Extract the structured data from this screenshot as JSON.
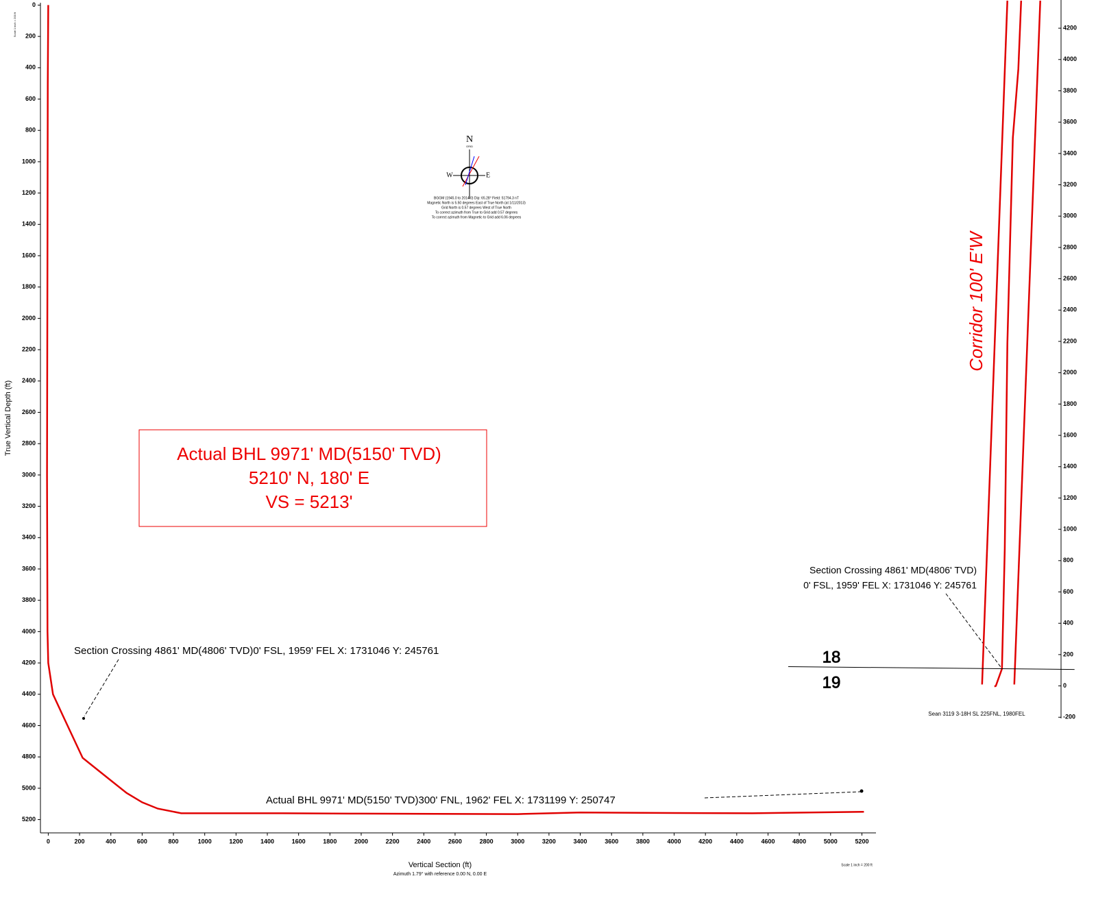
{
  "chart_data": [
    {
      "type": "line",
      "y_label": "True Vertical Depth (ft)",
      "x_label": "Vertical Section (ft)",
      "x_sublabel": "Azimuth 1.79° with reference 0.00 N, 0.00 E",
      "scale_note": "Scale 1 inch = 200 ft",
      "y_inverted": true,
      "color": "#e00000",
      "x": [
        0,
        -3,
        -5,
        -8,
        -5,
        0,
        30,
        100,
        220,
        400,
        500,
        600,
        700,
        850,
        1000,
        1500,
        2000,
        3000,
        3400,
        4000,
        4500,
        5213
      ],
      "values": [
        0,
        500,
        1500,
        3000,
        4000,
        4200,
        4400,
        4550,
        4806,
        4950,
        5030,
        5090,
        5130,
        5160,
        5160,
        5160,
        5162,
        5165,
        5155,
        5158,
        5160,
        5150
      ],
      "xlim": [
        -50,
        5290
      ],
      "ylim": [
        -15,
        5285
      ],
      "xticks": [
        0,
        200,
        400,
        600,
        800,
        1000,
        1200,
        1400,
        1600,
        1800,
        2000,
        2200,
        2400,
        2600,
        2800,
        3000,
        3200,
        3400,
        3600,
        3800,
        4000,
        4200,
        4400,
        4600,
        4800,
        5000,
        5200
      ],
      "yticks": [
        0,
        200,
        400,
        600,
        800,
        1000,
        1200,
        1400,
        1600,
        1800,
        2000,
        2200,
        2400,
        2600,
        2800,
        3000,
        3200,
        3400,
        3600,
        3800,
        4000,
        4200,
        4400,
        4600,
        4800,
        5000,
        5200
      ],
      "annotations": {
        "bhl_box": [
          "Actual BHL 9971' MD(5150' TVD)",
          "5210' N, 180' E",
          "VS = 5213'"
        ],
        "crossing": "Section Crossing 4861' MD(4806' TVD)0' FSL, 1959' FEL X: 1731046 Y: 245761",
        "bhl": "Actual BHL 9971' MD(5150' TVD)300' FNL, 1962' FEL X: 1731199 Y: 250747"
      },
      "compass": {
        "north": "N",
        "grid": "GRID",
        "west": "W",
        "east": "E",
        "notes": [
          "BGGM (1945.0 to 2014.0) Dip: 65.28°  Field: 51794.3 nT",
          "Magnetic North is 5.50 degrees East of True North (at 1/11/2013)",
          "Grid North is 0.57 degrees West of True North",
          "To correct azimuth from True to Grid add 0.57 degrees",
          "To correct azimuth from Magnetic to Grid add 6.06 degrees"
        ]
      }
    },
    {
      "type": "line",
      "title": "Corridor 100' E'W",
      "xlim": [
        -1370,
        640
      ],
      "ylim": [
        -260,
        4380
      ],
      "yticks": [
        -200,
        0,
        200,
        400,
        600,
        800,
        1000,
        1200,
        1400,
        1600,
        1800,
        2000,
        2200,
        2400,
        2600,
        2800,
        3000,
        3200,
        3400,
        3600,
        3800,
        4000,
        4200
      ],
      "series": [
        {
          "color": "#e00000",
          "x": [
            -9,
            0,
            39,
            57,
            74,
            109,
            144,
            162
          ],
          "values": [
            -4,
            0,
            109,
            875,
            2188,
            3501,
            3939,
            4376
          ]
        },
        {
          "color": "#e00000",
          "x": [
            -88,
            74
          ],
          "values": [
            9,
            4376
          ]
        },
        {
          "color": "#e00000",
          "x": [
            118,
            284
          ],
          "values": [
            9,
            4376
          ]
        },
        {
          "color": "#000000",
          "x": [
            -1326,
            503
          ],
          "values": [
            123,
            105
          ]
        }
      ],
      "section_north": "18",
      "section_south": "19",
      "well_label": "Sean 3119 3-18H SL 225FNL, 1980FEL",
      "crossing": [
        "Section Crossing 4861' MD(4806' TVD)",
        "0' FSL, 1959' FEL X: 1731046 Y: 245761"
      ]
    }
  ]
}
